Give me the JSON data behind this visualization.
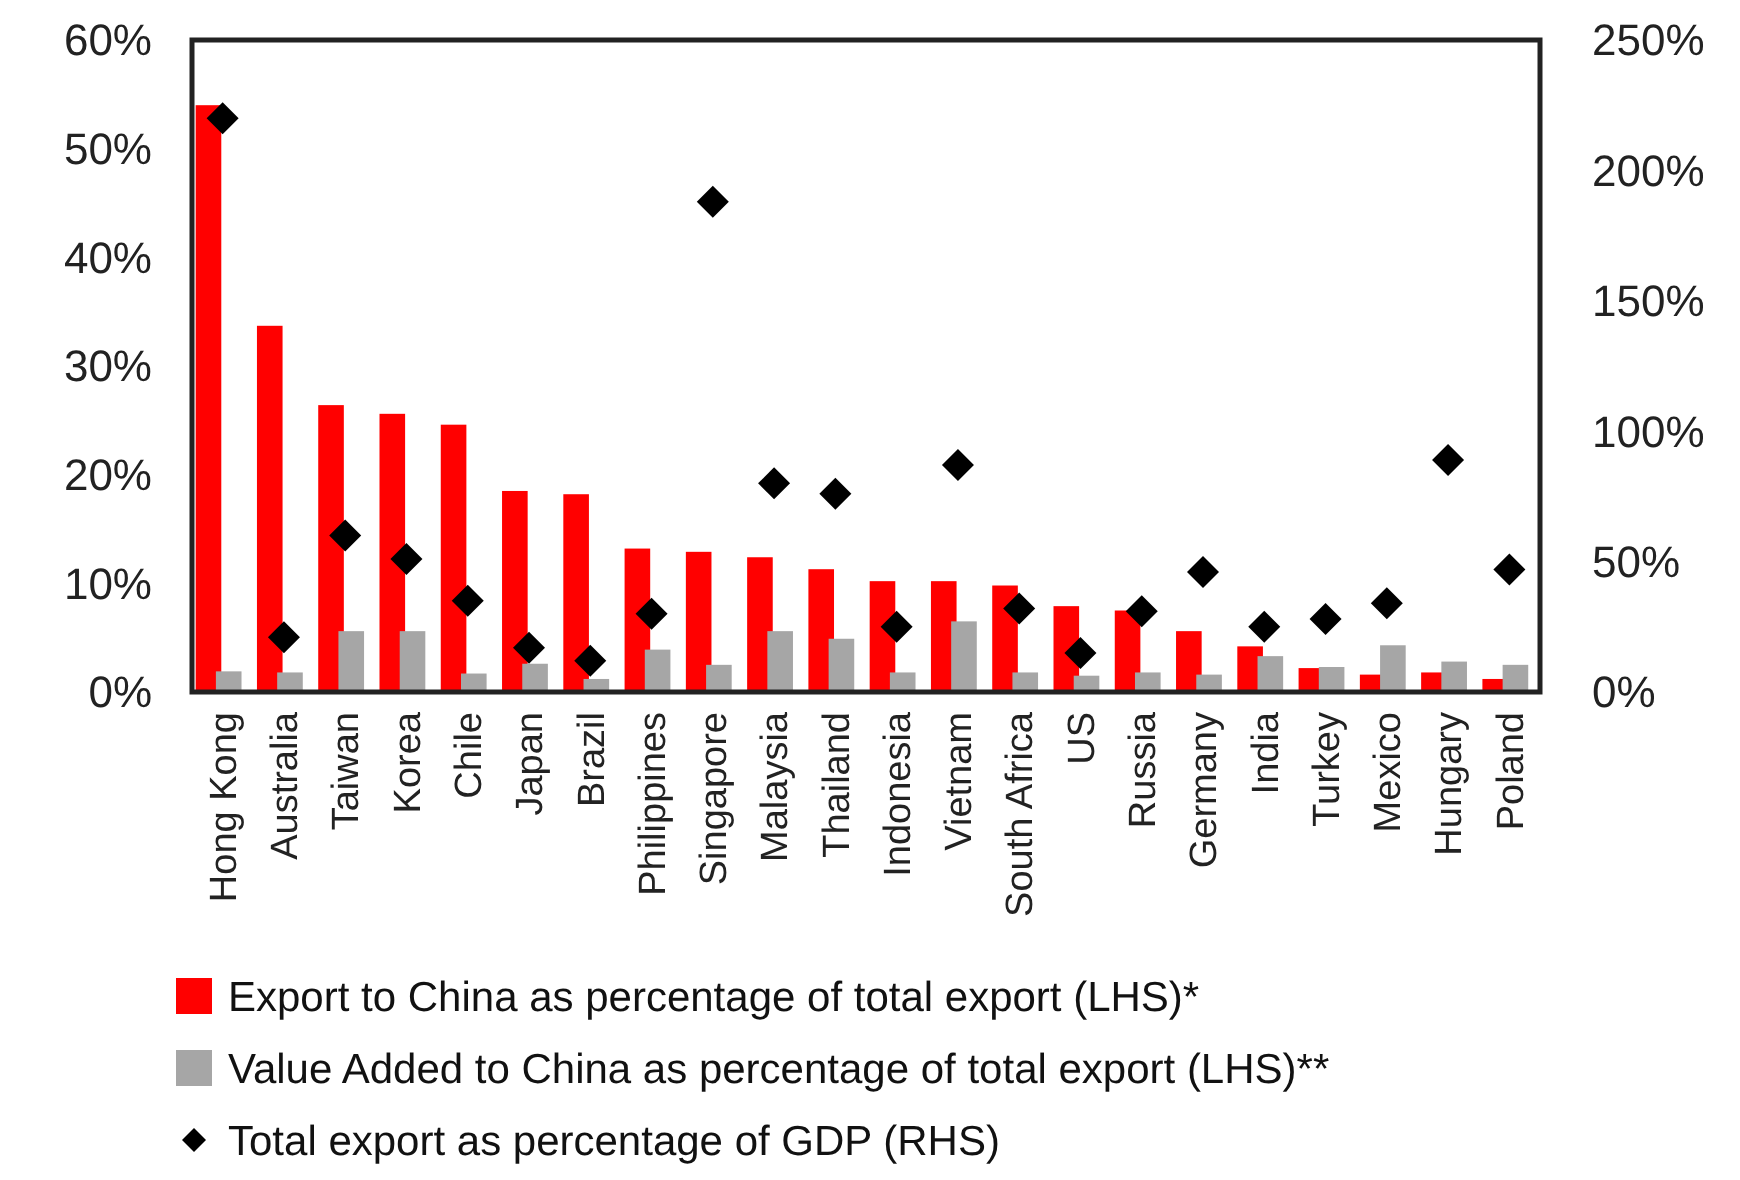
{
  "chart_data": {
    "type": "bar",
    "categories": [
      "Hong Kong",
      "Australia",
      "Taiwan",
      "Korea",
      "Chile",
      "Japan",
      "Brazil",
      "Philippines",
      "Singapore",
      "Malaysia",
      "Thailand",
      "Indonesia",
      "Vietnam",
      "South Africa",
      "US",
      "Russia",
      "Germany",
      "India",
      "Turkey",
      "Mexico",
      "Hungary",
      "Poland"
    ],
    "series": [
      {
        "name": "Export to China as percentage of total export (LHS)*",
        "color": "#ff0000",
        "values": [
          54,
          33.7,
          26.4,
          25.6,
          24.6,
          18.5,
          18.2,
          13.2,
          12.9,
          12.4,
          11.3,
          10.2,
          10.2,
          9.8,
          7.9,
          7.5,
          5.6,
          4.2,
          2.2,
          1.6,
          1.8,
          1.2
        ]
      },
      {
        "name": "Value Added to China as percentage of total export (LHS)**",
        "color": "#a6a6a6",
        "values": [
          1.9,
          1.8,
          5.6,
          5.6,
          1.7,
          2.6,
          1.2,
          3.9,
          2.5,
          5.6,
          4.9,
          1.8,
          6.5,
          1.8,
          1.5,
          1.8,
          1.6,
          3.3,
          2.3,
          4.3,
          2.8,
          2.5
        ]
      },
      {
        "name": "Total export as percentage of GDP (RHS)",
        "color": "#000000",
        "type": "scatter",
        "axis": "y2",
        "marker": "diamond",
        "values": [
          220,
          21,
          60,
          51,
          35,
          17,
          12,
          30,
          188,
          80,
          76,
          25,
          87,
          32,
          15,
          31,
          46,
          25,
          28,
          34,
          89,
          47
        ]
      }
    ],
    "ylim": [
      0,
      60
    ],
    "yticks": [
      {
        "value": 0,
        "label": "0%"
      },
      {
        "value": 10,
        "label": "10%"
      },
      {
        "value": 20,
        "label": "20%"
      },
      {
        "value": 30,
        "label": "30%"
      },
      {
        "value": 40,
        "label": "40%"
      },
      {
        "value": 50,
        "label": "50%"
      },
      {
        "value": 60,
        "label": "60%"
      }
    ],
    "y2lim": [
      0,
      250
    ],
    "y2ticks": [
      {
        "value": 0,
        "label": "0%"
      },
      {
        "value": 50,
        "label": "50%"
      },
      {
        "value": 100,
        "label": "100%"
      },
      {
        "value": 150,
        "label": "150%"
      },
      {
        "value": 200,
        "label": "200%"
      },
      {
        "value": 250,
        "label": "250%"
      }
    ],
    "grid": false,
    "legend": "bottom"
  }
}
